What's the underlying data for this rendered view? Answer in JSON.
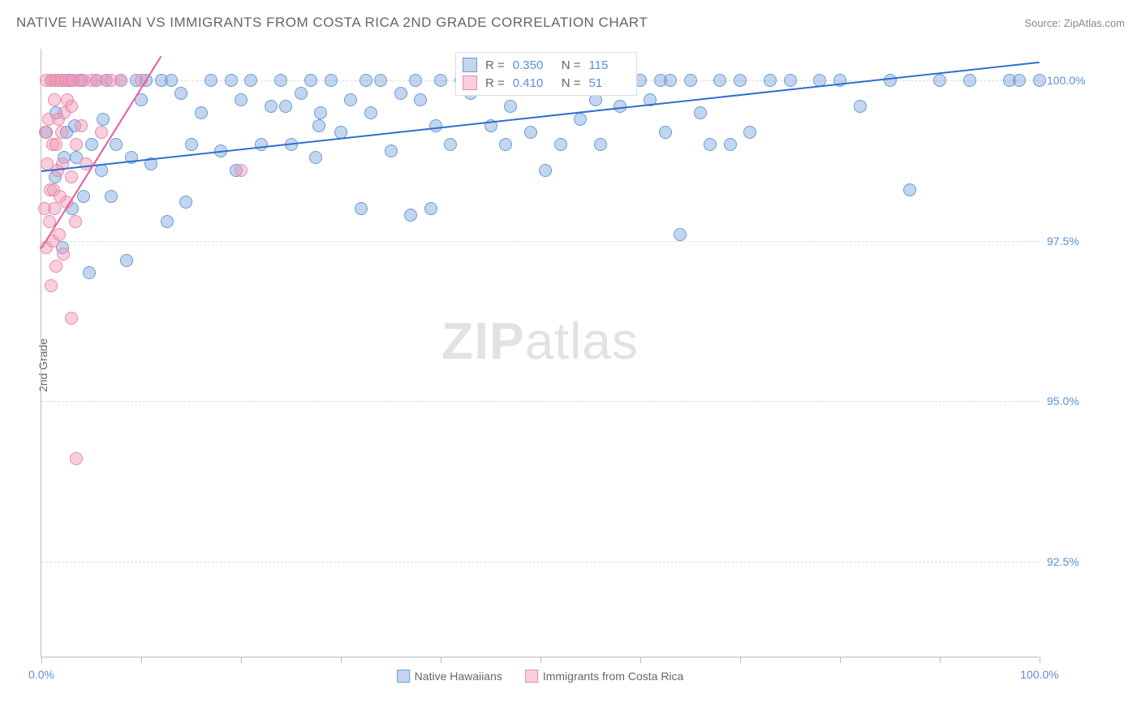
{
  "header": {
    "title": "NATIVE HAWAIIAN VS IMMIGRANTS FROM COSTA RICA 2ND GRADE CORRELATION CHART",
    "source": "Source: ZipAtlas.com"
  },
  "chart": {
    "type": "scatter",
    "y_axis_label": "2nd Grade",
    "xlim": [
      0,
      100
    ],
    "ylim": [
      91.0,
      100.5
    ],
    "y_ticks": [
      92.5,
      95.0,
      97.5,
      100.0
    ],
    "y_tick_labels": [
      "92.5%",
      "95.0%",
      "97.5%",
      "100.0%"
    ],
    "x_ticks": [
      0,
      10,
      20,
      30,
      40,
      50,
      60,
      70,
      80,
      90,
      100
    ],
    "x_tick_labels_shown": {
      "0": "0.0%",
      "100": "100.0%"
    },
    "background_color": "#ffffff",
    "grid_color": "#dddddd",
    "axis_color": "#bbbbbb",
    "tick_label_color": "#5b8fd6",
    "marker_radius": 8,
    "watermark_zip": "ZIP",
    "watermark_atlas": "atlas",
    "series": [
      {
        "id": "native_hawaiians",
        "label": "Native Hawaiians",
        "fill": "rgba(120,165,220,0.45)",
        "stroke": "#6a9bd8",
        "line_color": "#2e6fd0",
        "R": "0.350",
        "N": "115",
        "trend": {
          "x1": 0,
          "y1": 98.6,
          "x2": 100,
          "y2": 100.3
        },
        "points": [
          [
            0.5,
            99.2
          ],
          [
            1.0,
            100.0
          ],
          [
            1.4,
            98.5
          ],
          [
            1.5,
            99.5
          ],
          [
            2.0,
            100.0
          ],
          [
            2.1,
            97.4
          ],
          [
            2.3,
            98.8
          ],
          [
            2.5,
            99.2
          ],
          [
            3.0,
            100.0
          ],
          [
            3.1,
            98.0
          ],
          [
            3.3,
            99.3
          ],
          [
            3.5,
            98.8
          ],
          [
            4.0,
            100.0
          ],
          [
            4.2,
            98.2
          ],
          [
            4.8,
            97.0
          ],
          [
            5.0,
            99.0
          ],
          [
            5.5,
            100.0
          ],
          [
            6.0,
            98.6
          ],
          [
            6.2,
            99.4
          ],
          [
            6.5,
            100.0
          ],
          [
            7.0,
            98.2
          ],
          [
            7.5,
            99.0
          ],
          [
            8.0,
            100.0
          ],
          [
            8.5,
            97.2
          ],
          [
            9.0,
            98.8
          ],
          [
            9.5,
            100.0
          ],
          [
            10.0,
            99.7
          ],
          [
            10.5,
            100.0
          ],
          [
            11.0,
            98.7
          ],
          [
            12.0,
            100.0
          ],
          [
            12.6,
            97.8
          ],
          [
            13.0,
            100.0
          ],
          [
            14.0,
            99.8
          ],
          [
            14.5,
            98.1
          ],
          [
            15.0,
            99.0
          ],
          [
            16.0,
            99.5
          ],
          [
            17.0,
            100.0
          ],
          [
            18.0,
            98.9
          ],
          [
            19.0,
            100.0
          ],
          [
            19.5,
            98.6
          ],
          [
            20.0,
            99.7
          ],
          [
            21.0,
            100.0
          ],
          [
            22.0,
            99.0
          ],
          [
            23.0,
            99.6
          ],
          [
            24.0,
            100.0
          ],
          [
            24.5,
            99.6
          ],
          [
            25.0,
            99.0
          ],
          [
            26.0,
            99.8
          ],
          [
            27.0,
            100.0
          ],
          [
            27.5,
            98.8
          ],
          [
            27.8,
            99.3
          ],
          [
            28.0,
            99.5
          ],
          [
            29.0,
            100.0
          ],
          [
            30.0,
            99.2
          ],
          [
            31.0,
            99.7
          ],
          [
            32.0,
            98.0
          ],
          [
            32.5,
            100.0
          ],
          [
            33.0,
            99.5
          ],
          [
            34.0,
            100.0
          ],
          [
            35.0,
            98.9
          ],
          [
            36.0,
            99.8
          ],
          [
            37.0,
            97.9
          ],
          [
            37.5,
            100.0
          ],
          [
            38.0,
            99.7
          ],
          [
            39.0,
            98.0
          ],
          [
            39.5,
            99.3
          ],
          [
            40.0,
            100.0
          ],
          [
            41.0,
            99.0
          ],
          [
            42.0,
            100.0
          ],
          [
            43.0,
            99.8
          ],
          [
            44.0,
            100.0
          ],
          [
            45.0,
            99.3
          ],
          [
            46.0,
            100.0
          ],
          [
            46.5,
            99.0
          ],
          [
            47.0,
            99.6
          ],
          [
            48.0,
            100.0
          ],
          [
            49.0,
            99.2
          ],
          [
            50.0,
            100.0
          ],
          [
            50.5,
            98.6
          ],
          [
            51.0,
            100.0
          ],
          [
            52.0,
            99.0
          ],
          [
            53.0,
            100.0
          ],
          [
            54.0,
            99.4
          ],
          [
            55.0,
            100.0
          ],
          [
            55.5,
            99.7
          ],
          [
            56.0,
            99.0
          ],
          [
            57.0,
            100.0
          ],
          [
            57.5,
            100.0
          ],
          [
            58.0,
            99.6
          ],
          [
            59.0,
            100.0
          ],
          [
            60.0,
            100.0
          ],
          [
            61.0,
            99.7
          ],
          [
            62.0,
            100.0
          ],
          [
            62.5,
            99.2
          ],
          [
            63.0,
            100.0
          ],
          [
            64.0,
            97.6
          ],
          [
            65.0,
            100.0
          ],
          [
            66.0,
            99.5
          ],
          [
            67.0,
            99.0
          ],
          [
            68.0,
            100.0
          ],
          [
            69.0,
            99.0
          ],
          [
            70.0,
            100.0
          ],
          [
            71.0,
            99.2
          ],
          [
            73.0,
            100.0
          ],
          [
            75.0,
            100.0
          ],
          [
            78.0,
            100.0
          ],
          [
            80.0,
            100.0
          ],
          [
            82.0,
            99.6
          ],
          [
            85.0,
            100.0
          ],
          [
            87.0,
            98.3
          ],
          [
            90.0,
            100.0
          ],
          [
            93.0,
            100.0
          ],
          [
            97.0,
            100.0
          ],
          [
            98.0,
            100.0
          ],
          [
            100.0,
            100.0
          ]
        ]
      },
      {
        "id": "costa_rica",
        "label": "Immigrants from Costa Rica",
        "fill": "rgba(240,150,180,0.45)",
        "stroke": "#e889ac",
        "line_color": "#e95a9a",
        "R": "0.410",
        "N": "51",
        "trend": {
          "x1": 0,
          "y1": 97.4,
          "x2": 12,
          "y2": 100.4
        },
        "points": [
          [
            0.3,
            98.0
          ],
          [
            0.4,
            99.2
          ],
          [
            0.5,
            97.4
          ],
          [
            0.5,
            100.0
          ],
          [
            0.6,
            98.7
          ],
          [
            0.7,
            99.4
          ],
          [
            0.8,
            97.8
          ],
          [
            0.9,
            98.3
          ],
          [
            1.0,
            100.0
          ],
          [
            1.0,
            96.8
          ],
          [
            1.1,
            99.0
          ],
          [
            1.1,
            97.5
          ],
          [
            1.2,
            98.3
          ],
          [
            1.3,
            99.7
          ],
          [
            1.3,
            98.0
          ],
          [
            1.4,
            100.0
          ],
          [
            1.5,
            97.1
          ],
          [
            1.5,
            99.0
          ],
          [
            1.6,
            98.6
          ],
          [
            1.7,
            99.4
          ],
          [
            1.8,
            100.0
          ],
          [
            1.8,
            97.6
          ],
          [
            1.9,
            98.2
          ],
          [
            2.0,
            99.2
          ],
          [
            2.0,
            100.0
          ],
          [
            2.1,
            98.7
          ],
          [
            2.2,
            97.3
          ],
          [
            2.3,
            99.5
          ],
          [
            2.4,
            100.0
          ],
          [
            2.5,
            98.1
          ],
          [
            2.6,
            99.7
          ],
          [
            2.8,
            100.0
          ],
          [
            3.0,
            98.5
          ],
          [
            3.0,
            99.6
          ],
          [
            3.2,
            100.0
          ],
          [
            3.4,
            97.8
          ],
          [
            3.5,
            99.0
          ],
          [
            3.7,
            100.0
          ],
          [
            4.0,
            99.3
          ],
          [
            4.2,
            100.0
          ],
          [
            4.5,
            98.7
          ],
          [
            5.0,
            100.0
          ],
          [
            5.5,
            100.0
          ],
          [
            6.0,
            99.2
          ],
          [
            6.5,
            100.0
          ],
          [
            7.0,
            100.0
          ],
          [
            8.0,
            100.0
          ],
          [
            3.0,
            96.3
          ],
          [
            3.5,
            94.1
          ],
          [
            10.0,
            100.0
          ],
          [
            20.0,
            98.6
          ]
        ]
      }
    ]
  },
  "legend_bottom": {
    "series1_label": "Native Hawaiians",
    "series2_label": "Immigrants from Costa Rica"
  },
  "legend_top": {
    "r_label": "R =",
    "n_label": "N ="
  }
}
